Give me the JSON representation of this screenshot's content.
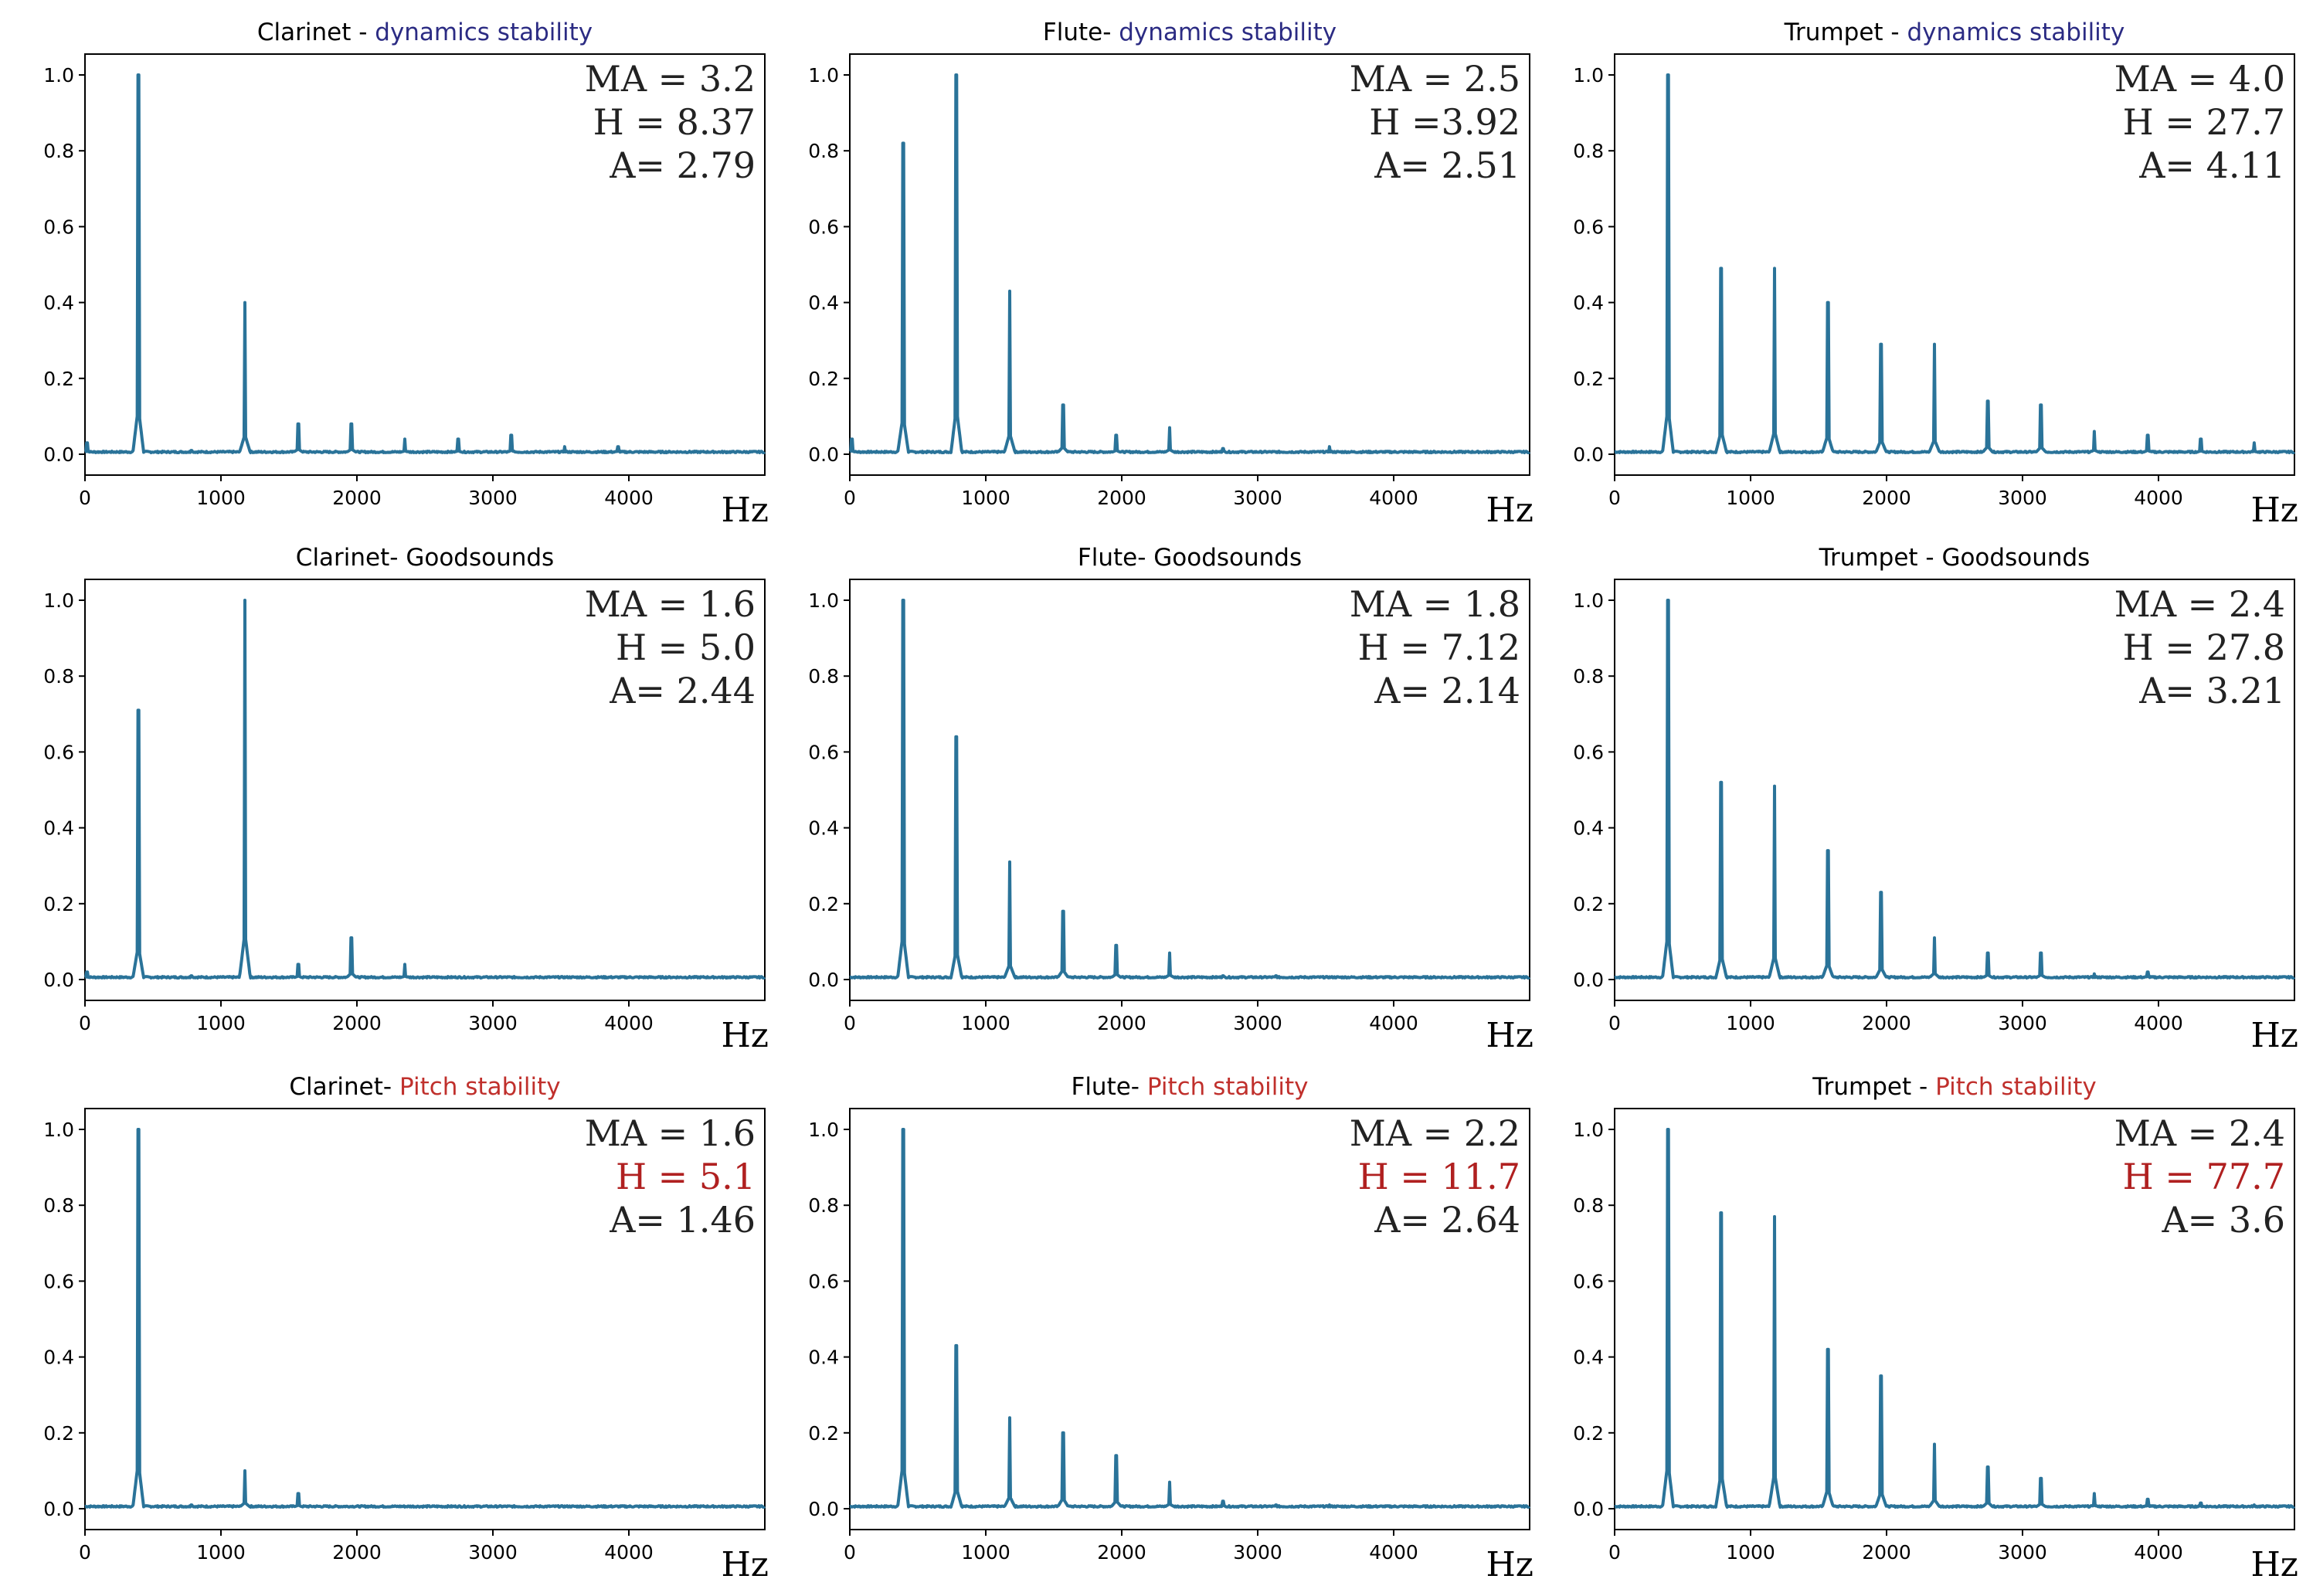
{
  "colors": {
    "series": "#2a7399",
    "accent_blue": "#2b2b83",
    "accent_red": "#c0302c",
    "stat_red": "#b02020"
  },
  "chart_data": [
    {
      "type": "line",
      "title": "Clarinet - dynamics stability",
      "title_main": "Clarinet - ",
      "title_accent": "dynamics stability",
      "accent": "blue",
      "xlabel": "Hz",
      "ylabel": "",
      "xlim": [
        0,
        5000
      ],
      "ylim": [
        0,
        1.0
      ],
      "xticks": [
        "0",
        "1000",
        "2000",
        "3000",
        "4000"
      ],
      "yticks": [
        "0.0",
        "0.2",
        "0.4",
        "0.6",
        "0.8",
        "1.0"
      ],
      "stats": [
        {
          "text": "MA = 3.2",
          "red": false
        },
        {
          "text": "H = 8.37",
          "red": false
        },
        {
          "text": "A= 2.79",
          "red": false
        }
      ],
      "peaks": [
        {
          "x": 15,
          "y": 0.03
        },
        {
          "x": 392,
          "y": 1.0
        },
        {
          "x": 784,
          "y": 0.01
        },
        {
          "x": 1176,
          "y": 0.4
        },
        {
          "x": 1568,
          "y": 0.08
        },
        {
          "x": 1960,
          "y": 0.08
        },
        {
          "x": 2352,
          "y": 0.04
        },
        {
          "x": 2744,
          "y": 0.04
        },
        {
          "x": 3136,
          "y": 0.05
        },
        {
          "x": 3528,
          "y": 0.02
        },
        {
          "x": 3920,
          "y": 0.02
        },
        {
          "x": 4312,
          "y": 0.005
        }
      ]
    },
    {
      "type": "line",
      "title": "Flute- dynamics stability",
      "title_main": "Flute- ",
      "title_accent": "dynamics stability",
      "accent": "blue",
      "xlabel": "Hz",
      "ylabel": "",
      "xlim": [
        0,
        5000
      ],
      "ylim": [
        0,
        1.0
      ],
      "xticks": [
        "0",
        "1000",
        "2000",
        "3000",
        "4000"
      ],
      "yticks": [
        "0.0",
        "0.2",
        "0.4",
        "0.6",
        "0.8",
        "1.0"
      ],
      "stats": [
        {
          "text": "MA = 2.5",
          "red": false
        },
        {
          "text": "H =3.92",
          "red": false
        },
        {
          "text": "A= 2.51",
          "red": false
        }
      ],
      "peaks": [
        {
          "x": 15,
          "y": 0.04
        },
        {
          "x": 392,
          "y": 0.82
        },
        {
          "x": 784,
          "y": 1.0
        },
        {
          "x": 1176,
          "y": 0.43
        },
        {
          "x": 1568,
          "y": 0.13
        },
        {
          "x": 1960,
          "y": 0.05
        },
        {
          "x": 2352,
          "y": 0.07
        },
        {
          "x": 2744,
          "y": 0.015
        },
        {
          "x": 3136,
          "y": 0.005
        },
        {
          "x": 3528,
          "y": 0.02
        },
        {
          "x": 3920,
          "y": 0.005
        }
      ]
    },
    {
      "type": "line",
      "title": "Trumpet - dynamics stability",
      "title_main": "Trumpet - ",
      "title_accent": "dynamics stability",
      "accent": "blue",
      "xlabel": "Hz",
      "ylabel": "",
      "xlim": [
        0,
        5000
      ],
      "ylim": [
        0,
        1.0
      ],
      "xticks": [
        "0",
        "1000",
        "2000",
        "3000",
        "4000"
      ],
      "yticks": [
        "0.0",
        "0.2",
        "0.4",
        "0.6",
        "0.8",
        "1.0"
      ],
      "stats": [
        {
          "text": "MA = 4.0",
          "red": false
        },
        {
          "text": "H = 27.7",
          "red": false
        },
        {
          "text": "A= 4.11",
          "red": false
        }
      ],
      "peaks": [
        {
          "x": 392,
          "y": 1.0
        },
        {
          "x": 784,
          "y": 0.49
        },
        {
          "x": 1176,
          "y": 0.49
        },
        {
          "x": 1568,
          "y": 0.4
        },
        {
          "x": 1960,
          "y": 0.29
        },
        {
          "x": 2352,
          "y": 0.29
        },
        {
          "x": 2744,
          "y": 0.14
        },
        {
          "x": 3136,
          "y": 0.13
        },
        {
          "x": 3528,
          "y": 0.06
        },
        {
          "x": 3920,
          "y": 0.05
        },
        {
          "x": 4312,
          "y": 0.04
        },
        {
          "x": 4704,
          "y": 0.03
        }
      ]
    },
    {
      "type": "line",
      "title": "Clarinet- Goodsounds",
      "title_main": "Clarinet- Goodsounds",
      "title_accent": "",
      "accent": "none",
      "xlabel": "Hz",
      "ylabel": "",
      "xlim": [
        0,
        5000
      ],
      "ylim": [
        0,
        1.0
      ],
      "xticks": [
        "0",
        "1000",
        "2000",
        "3000",
        "4000"
      ],
      "yticks": [
        "0.0",
        "0.2",
        "0.4",
        "0.6",
        "0.8",
        "1.0"
      ],
      "stats": [
        {
          "text": "MA = 1.6",
          "red": false
        },
        {
          "text": "H = 5.0",
          "red": false
        },
        {
          "text": "A= 2.44",
          "red": false
        }
      ],
      "peaks": [
        {
          "x": 15,
          "y": 0.02
        },
        {
          "x": 392,
          "y": 0.71
        },
        {
          "x": 784,
          "y": 0.01
        },
        {
          "x": 1176,
          "y": 1.0
        },
        {
          "x": 1568,
          "y": 0.04
        },
        {
          "x": 1960,
          "y": 0.11
        },
        {
          "x": 2352,
          "y": 0.04
        }
      ]
    },
    {
      "type": "line",
      "title": "Flute- Goodsounds",
      "title_main": "Flute- Goodsounds",
      "title_accent": "",
      "accent": "none",
      "xlabel": "Hz",
      "ylabel": "",
      "xlim": [
        0,
        5000
      ],
      "ylim": [
        0,
        1.0
      ],
      "xticks": [
        "0",
        "1000",
        "2000",
        "3000",
        "4000"
      ],
      "yticks": [
        "0.0",
        "0.2",
        "0.4",
        "0.6",
        "0.8",
        "1.0"
      ],
      "stats": [
        {
          "text": "MA = 1.8",
          "red": false
        },
        {
          "text": "H = 7.12",
          "red": false
        },
        {
          "text": "A= 2.14",
          "red": false
        }
      ],
      "peaks": [
        {
          "x": 392,
          "y": 1.0
        },
        {
          "x": 784,
          "y": 0.64
        },
        {
          "x": 1176,
          "y": 0.31
        },
        {
          "x": 1568,
          "y": 0.18
        },
        {
          "x": 1960,
          "y": 0.09
        },
        {
          "x": 2352,
          "y": 0.07
        },
        {
          "x": 2744,
          "y": 0.01
        },
        {
          "x": 3136,
          "y": 0.01
        },
        {
          "x": 3528,
          "y": 0.005
        }
      ]
    },
    {
      "type": "line",
      "title": "Trumpet - Goodsounds",
      "title_main": "Trumpet - Goodsounds",
      "title_accent": "",
      "accent": "none",
      "xlabel": "Hz",
      "ylabel": "",
      "xlim": [
        0,
        5000
      ],
      "ylim": [
        0,
        1.0
      ],
      "xticks": [
        "0",
        "1000",
        "2000",
        "3000",
        "4000"
      ],
      "yticks": [
        "0.0",
        "0.2",
        "0.4",
        "0.6",
        "0.8",
        "1.0"
      ],
      "stats": [
        {
          "text": "MA = 2.4",
          "red": false
        },
        {
          "text": "H = 27.8",
          "red": false
        },
        {
          "text": "A= 3.21",
          "red": false
        }
      ],
      "peaks": [
        {
          "x": 392,
          "y": 1.0
        },
        {
          "x": 784,
          "y": 0.52
        },
        {
          "x": 1176,
          "y": 0.51
        },
        {
          "x": 1568,
          "y": 0.34
        },
        {
          "x": 1960,
          "y": 0.23
        },
        {
          "x": 2352,
          "y": 0.11
        },
        {
          "x": 2744,
          "y": 0.07
        },
        {
          "x": 3136,
          "y": 0.07
        },
        {
          "x": 3528,
          "y": 0.015
        },
        {
          "x": 3920,
          "y": 0.02
        },
        {
          "x": 4312,
          "y": 0.005
        },
        {
          "x": 4704,
          "y": 0.005
        }
      ]
    },
    {
      "type": "line",
      "title": "Clarinet- Pitch stability",
      "title_main": "Clarinet- ",
      "title_accent": "Pitch stability",
      "accent": "red",
      "xlabel": "Hz",
      "ylabel": "",
      "xlim": [
        0,
        5000
      ],
      "ylim": [
        0,
        1.0
      ],
      "xticks": [
        "0",
        "1000",
        "2000",
        "3000",
        "4000"
      ],
      "yticks": [
        "0.0",
        "0.2",
        "0.4",
        "0.6",
        "0.8",
        "1.0"
      ],
      "stats": [
        {
          "text": "MA = 1.6",
          "red": false
        },
        {
          "text": "H = 5.1",
          "red": true
        },
        {
          "text": "A= 1.46",
          "red": false
        }
      ],
      "peaks": [
        {
          "x": 392,
          "y": 1.0
        },
        {
          "x": 784,
          "y": 0.01
        },
        {
          "x": 1176,
          "y": 0.1
        },
        {
          "x": 1568,
          "y": 0.04
        },
        {
          "x": 1960,
          "y": 0.005
        }
      ]
    },
    {
      "type": "line",
      "title": "Flute- Pitch stability",
      "title_main": "Flute- ",
      "title_accent": "Pitch stability",
      "accent": "red",
      "xlabel": "Hz",
      "ylabel": "",
      "xlim": [
        0,
        5000
      ],
      "ylim": [
        0,
        1.0
      ],
      "xticks": [
        "0",
        "1000",
        "2000",
        "3000",
        "4000"
      ],
      "yticks": [
        "0.0",
        "0.2",
        "0.4",
        "0.6",
        "0.8",
        "1.0"
      ],
      "stats": [
        {
          "text": "MA =  2.2",
          "red": false
        },
        {
          "text": "H = 11.7",
          "red": true
        },
        {
          "text": "A=  2.64",
          "red": false
        }
      ],
      "peaks": [
        {
          "x": 392,
          "y": 1.0
        },
        {
          "x": 784,
          "y": 0.43
        },
        {
          "x": 1176,
          "y": 0.24
        },
        {
          "x": 1568,
          "y": 0.2
        },
        {
          "x": 1960,
          "y": 0.14
        },
        {
          "x": 2352,
          "y": 0.07
        },
        {
          "x": 2744,
          "y": 0.02
        },
        {
          "x": 3136,
          "y": 0.01
        },
        {
          "x": 3528,
          "y": 0.01
        },
        {
          "x": 3920,
          "y": 0.005
        }
      ]
    },
    {
      "type": "line",
      "title": "Trumpet - Pitch stability",
      "title_main": "Trumpet - ",
      "title_accent": "Pitch stability",
      "accent": "red",
      "xlabel": "Hz",
      "ylabel": "",
      "xlim": [
        0,
        5000
      ],
      "ylim": [
        0,
        1.0
      ],
      "xticks": [
        "0",
        "1000",
        "2000",
        "3000",
        "4000"
      ],
      "yticks": [
        "0.0",
        "0.2",
        "0.4",
        "0.6",
        "0.8",
        "1.0"
      ],
      "stats": [
        {
          "text": "MA =  2.4",
          "red": false
        },
        {
          "text": "H = 77.7",
          "red": true
        },
        {
          "text": "A= 3.6",
          "red": false
        }
      ],
      "peaks": [
        {
          "x": 392,
          "y": 1.0
        },
        {
          "x": 784,
          "y": 0.78
        },
        {
          "x": 1176,
          "y": 0.77
        },
        {
          "x": 1568,
          "y": 0.42
        },
        {
          "x": 1960,
          "y": 0.35
        },
        {
          "x": 2352,
          "y": 0.17
        },
        {
          "x": 2744,
          "y": 0.11
        },
        {
          "x": 3136,
          "y": 0.08
        },
        {
          "x": 3528,
          "y": 0.04
        },
        {
          "x": 3920,
          "y": 0.025
        },
        {
          "x": 4312,
          "y": 0.015
        },
        {
          "x": 4704,
          "y": 0.01
        }
      ]
    }
  ]
}
